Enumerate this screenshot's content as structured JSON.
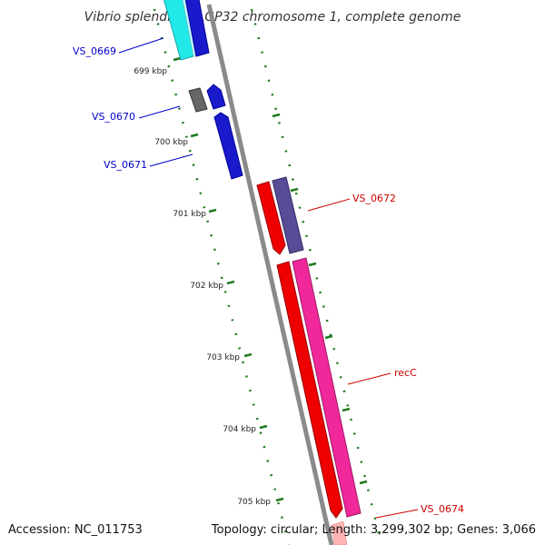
{
  "title": "Vibrio splendidus LGP32 chromosome 1, complete genome",
  "footer": {
    "accession": "Accession: NC_011753",
    "summary": "Topology: circular; Length: 3,299,302 bp; Genes: 3,066"
  },
  "colors": {
    "forward_label": "#0000cc",
    "reverse_label": "#cc0000",
    "tick": "#1f7a1f",
    "backbone": "#8a8a8a"
  },
  "ticks": [
    {
      "label": "699 kbp"
    },
    {
      "label": "700 kbp"
    },
    {
      "label": "701 kbp"
    },
    {
      "label": "702 kbp"
    },
    {
      "label": "703 kbp"
    },
    {
      "label": "704 kbp"
    },
    {
      "label": "705 kbp"
    }
  ],
  "gene_labels": [
    {
      "label": "VS_0669",
      "strand": "forward"
    },
    {
      "label": "VS_0670",
      "strand": "forward"
    },
    {
      "label": "VS_0671",
      "strand": "forward"
    },
    {
      "label": "VS_0672",
      "strand": "reverse"
    },
    {
      "label": "recC",
      "strand": "reverse"
    },
    {
      "label": "VS_0674",
      "strand": "reverse"
    }
  ]
}
